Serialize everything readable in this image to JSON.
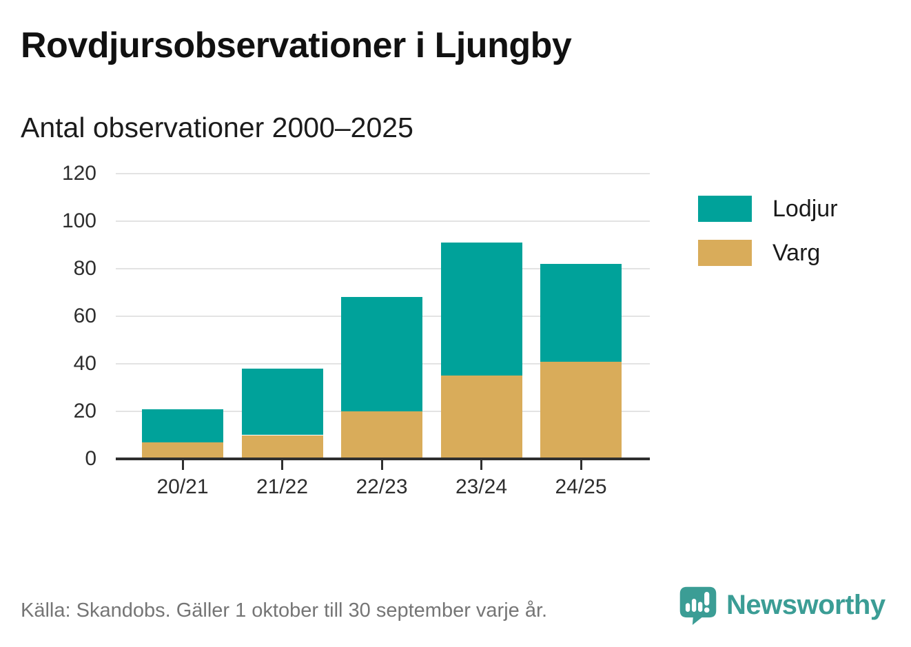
{
  "header": {
    "title": "Rovdjursobservationer i Ljungby",
    "subtitle": "Antal observationer 2000–2025"
  },
  "chart_data": {
    "type": "bar",
    "stacked": true,
    "title": "Rovdjursobservationer i Ljungby",
    "subtitle": "Antal observationer 2000–2025",
    "categories": [
      "20/21",
      "21/22",
      "22/23",
      "23/24",
      "24/25"
    ],
    "series": [
      {
        "name": "Varg",
        "color": "#d9ac5a",
        "values": [
          7,
          10,
          20,
          35,
          41
        ]
      },
      {
        "name": "Lodjur",
        "color": "#00a29a",
        "values": [
          14,
          28,
          48,
          56,
          41
        ]
      }
    ],
    "totals": [
      21,
      38,
      68,
      91,
      82
    ],
    "yticks": [
      0,
      20,
      40,
      60,
      80,
      100,
      120
    ],
    "ylim": [
      0,
      120
    ],
    "xlabel": "",
    "ylabel": "",
    "grid": true,
    "legend_position": "right",
    "legend_order": [
      "Lodjur",
      "Varg"
    ],
    "axis_color": "#2f2f2f",
    "gridline_color": "#e3e3e3"
  },
  "footer": {
    "source": "Källa: Skandobs. Gäller 1 oktober till 30 september varje år.",
    "brand": "Newsworthy",
    "brand_color": "#3b9d95"
  }
}
